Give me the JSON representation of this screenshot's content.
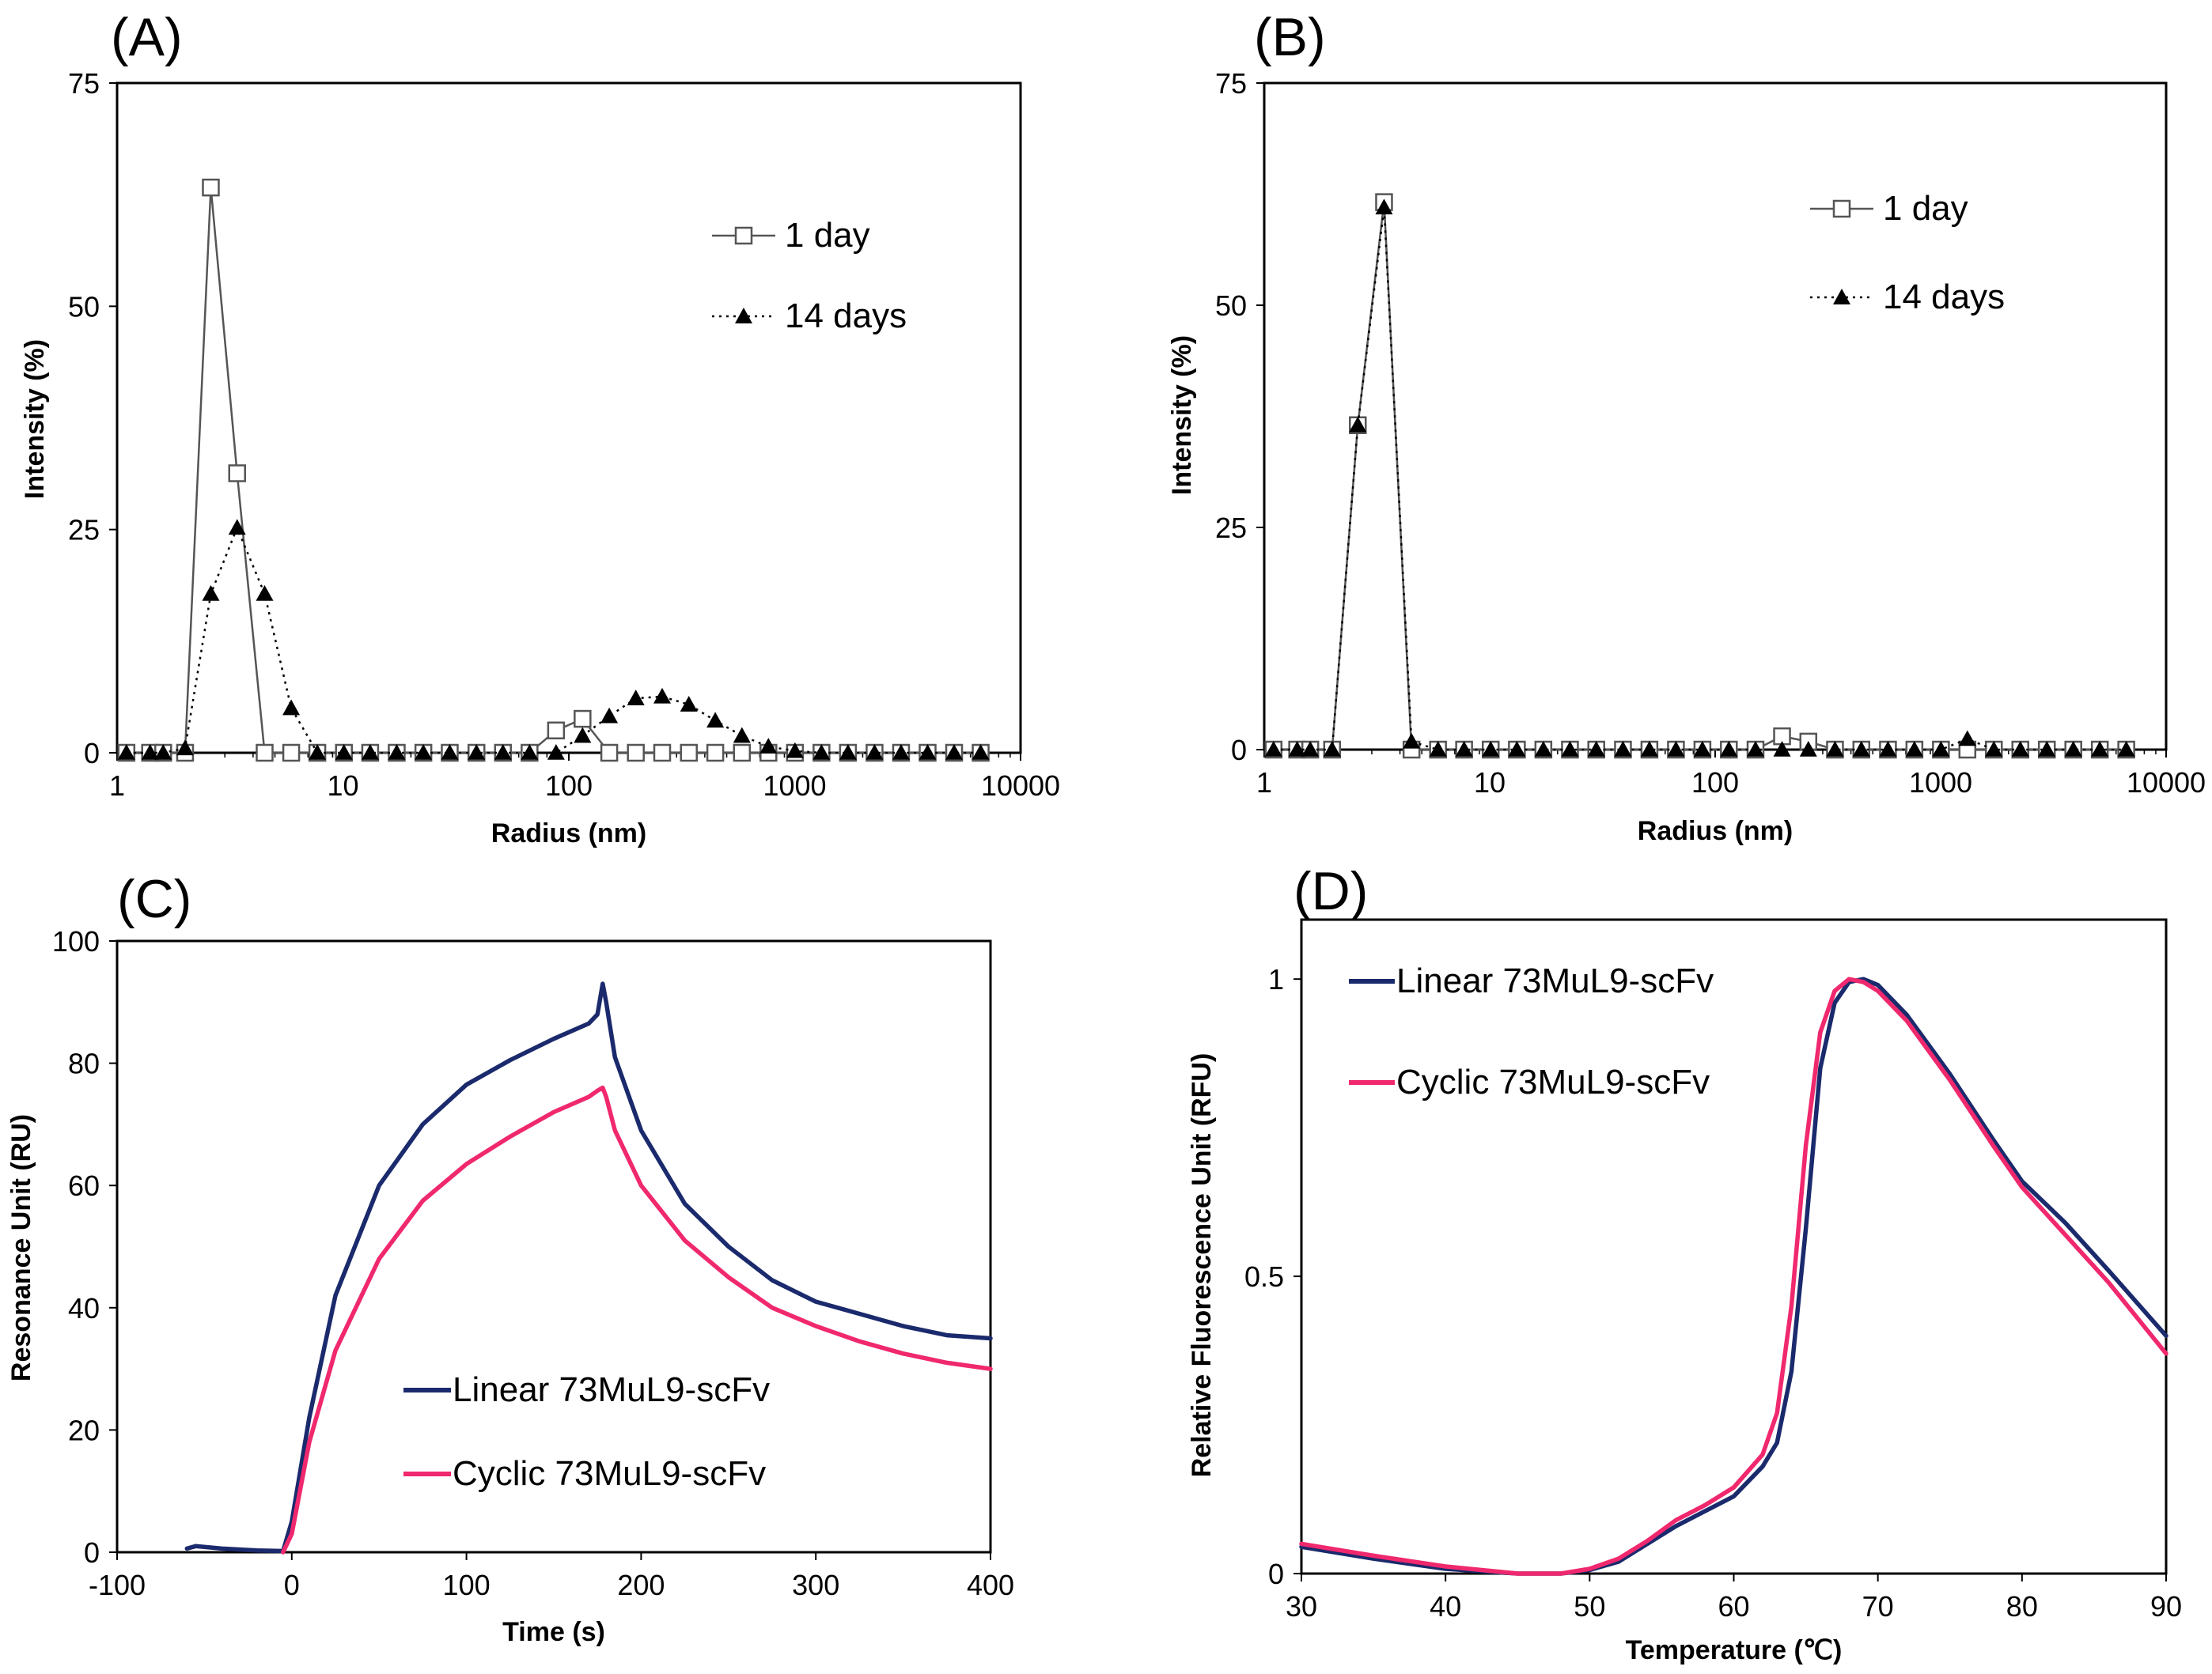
{
  "figure": {
    "background": "#ffffff"
  },
  "chart_data": [
    {
      "panel": "(A)",
      "type": "scatter",
      "xscale": "log",
      "xlabel": "Radius (nm)",
      "ylabel": "Intensity (%)",
      "xlim": [
        1,
        10000
      ],
      "ylim": [
        0,
        75
      ],
      "xticks": [
        "1",
        "10",
        "100",
        "1000",
        "10000"
      ],
      "yticks": [
        "0",
        "25",
        "50",
        "75"
      ],
      "x": [
        1.1,
        1.4,
        1.6,
        2.0,
        2.6,
        3.4,
        4.5,
        5.9,
        7.7,
        10.1,
        13.2,
        17.3,
        22.7,
        29.7,
        39.0,
        51.1,
        67.0,
        87.8,
        115,
        151,
        198,
        259,
        340,
        445,
        584,
        765,
        1003,
        1314,
        1722,
        2257,
        2958,
        3877,
        5080,
        6658
      ],
      "series": [
        {
          "name": "1 day",
          "marker": "open-square",
          "line": "solid",
          "values": [
            0,
            0,
            0,
            0,
            63.3,
            31.3,
            0,
            0,
            0,
            0,
            0,
            0,
            0,
            0,
            0,
            0,
            0,
            2.5,
            3.8,
            0,
            0,
            0,
            0,
            0,
            0,
            0,
            0,
            0,
            0,
            0,
            0,
            0,
            0,
            0
          ]
        },
        {
          "name": "14 days",
          "marker": "filled-triangle",
          "line": "dotted",
          "values": [
            0,
            0,
            0,
            0.5,
            17.8,
            25.2,
            17.8,
            5.0,
            0,
            0,
            0,
            0,
            0,
            0,
            0,
            0,
            0,
            0,
            1.9,
            4.1,
            6.1,
            6.3,
            5.4,
            3.6,
            1.9,
            0.7,
            0.2,
            0,
            0,
            0,
            0,
            0,
            0,
            0
          ]
        }
      ],
      "legend": [
        "1 day",
        "14 days"
      ],
      "legend_position": "top-right"
    },
    {
      "panel": "(B)",
      "type": "scatter",
      "xscale": "log",
      "xlabel": "Radius (nm)",
      "ylabel": "Intensity (%)",
      "xlim": [
        1,
        10000
      ],
      "ylim": [
        0,
        75
      ],
      "xticks": [
        "1",
        "10",
        "100",
        "1000",
        "10000"
      ],
      "yticks": [
        "0",
        "25",
        "50",
        "75"
      ],
      "x": [
        1.1,
        1.4,
        1.6,
        2.0,
        2.6,
        3.4,
        4.5,
        5.9,
        7.7,
        10.1,
        13.2,
        17.3,
        22.7,
        29.7,
        39.0,
        51.1,
        67.0,
        87.8,
        115,
        151,
        198,
        259,
        340,
        445,
        584,
        765,
        1003,
        1314,
        1722,
        2257,
        2958,
        3877,
        5080,
        6658
      ],
      "series": [
        {
          "name": "1 day",
          "marker": "open-square",
          "line": "solid",
          "values": [
            0,
            0,
            0,
            0,
            36.5,
            61.6,
            0,
            0,
            0,
            0,
            0,
            0,
            0,
            0,
            0,
            0,
            0,
            0,
            0,
            0,
            1.5,
            0.9,
            0,
            0,
            0,
            0,
            0,
            0,
            0,
            0,
            0,
            0,
            0,
            0
          ]
        },
        {
          "name": "14 days",
          "marker": "filled-triangle",
          "line": "dotted",
          "values": [
            0,
            0,
            0,
            0,
            36.5,
            61.0,
            0.9,
            0,
            0,
            0,
            0,
            0,
            0,
            0,
            0,
            0,
            0,
            0,
            0,
            0,
            0,
            0,
            0,
            0,
            0,
            0,
            0,
            1.2,
            0,
            0,
            0,
            0,
            0,
            0
          ]
        }
      ],
      "legend": [
        "1 day",
        "14 days"
      ],
      "legend_position": "top-right"
    },
    {
      "panel": "(C)",
      "type": "line",
      "xlabel": "Time (s)",
      "ylabel": "Resonance Unit (RU)",
      "xlim": [
        -100,
        400
      ],
      "ylim": [
        0,
        100
      ],
      "xticks": [
        "-100",
        "0",
        "100",
        "200",
        "300",
        "400"
      ],
      "yticks": [
        "0",
        "20",
        "40",
        "60",
        "80",
        "100"
      ],
      "series": [
        {
          "name": "Linear 73MuL9-scFv",
          "color": "#1a2a6c",
          "x": [
            -60,
            -55,
            -40,
            -20,
            -5,
            0,
            10,
            25,
            50,
            75,
            100,
            125,
            150,
            170,
            175,
            178,
            180,
            185,
            200,
            225,
            250,
            275,
            300,
            325,
            350,
            375,
            400
          ],
          "y": [
            0.6,
            1.0,
            0.6,
            0.3,
            0.2,
            5,
            22,
            42,
            60,
            70,
            76.5,
            80.5,
            84,
            86.5,
            88,
            93,
            90,
            81,
            69,
            57,
            50,
            44.5,
            41,
            39,
            37,
            35.5,
            35
          ]
        },
        {
          "name": "Cyclic 73MuL9-scFv",
          "color": "#f0286e",
          "x": [
            -5,
            0,
            10,
            25,
            50,
            75,
            100,
            125,
            150,
            170,
            175,
            178,
            180,
            185,
            200,
            225,
            250,
            275,
            300,
            325,
            350,
            375,
            400
          ],
          "y": [
            0,
            3,
            18,
            33,
            48,
            57.5,
            63.5,
            68,
            72,
            74.5,
            75.5,
            76,
            74.5,
            69,
            60,
            51,
            45,
            40,
            37,
            34.5,
            32.5,
            31,
            30
          ]
        }
      ],
      "legend": [
        "Linear 73MuL9-scFv",
        "Cyclic 73MuL9-scFv"
      ],
      "legend_position": "bottom-center"
    },
    {
      "panel": "(D)",
      "type": "line",
      "xlabel": "Temperature (℃)",
      "ylabel": "Relative Fluorescence Unit (RFU)",
      "xlim": [
        30,
        90
      ],
      "ylim": [
        0,
        1.1
      ],
      "xticks": [
        "30",
        "40",
        "50",
        "60",
        "70",
        "80",
        "90"
      ],
      "yticks": [
        "0",
        "0.5",
        "1"
      ],
      "series": [
        {
          "name": "Linear 73MuL9-scFv",
          "color": "#1a2a6c",
          "x": [
            30,
            35,
            40,
            45,
            48,
            50,
            52,
            54,
            56,
            58,
            60,
            62,
            63,
            64,
            65,
            66,
            67,
            68,
            69,
            70,
            72,
            75,
            78,
            80,
            83,
            86,
            90
          ],
          "y": [
            0.045,
            0.025,
            0.008,
            0.0,
            0.0,
            0.006,
            0.02,
            0.05,
            0.08,
            0.105,
            0.13,
            0.18,
            0.22,
            0.34,
            0.58,
            0.85,
            0.96,
            0.995,
            1.0,
            0.99,
            0.94,
            0.84,
            0.73,
            0.66,
            0.59,
            0.51,
            0.4
          ]
        },
        {
          "name": "Cyclic 73MuL9-scFv",
          "color": "#f0286e",
          "x": [
            30,
            35,
            40,
            45,
            48,
            50,
            52,
            54,
            56,
            58,
            60,
            62,
            63,
            64,
            65,
            66,
            67,
            68,
            69,
            70,
            72,
            75,
            78,
            80,
            83,
            86,
            90
          ],
          "y": [
            0.05,
            0.03,
            0.012,
            0.0,
            0.0,
            0.008,
            0.025,
            0.055,
            0.09,
            0.115,
            0.145,
            0.2,
            0.27,
            0.45,
            0.72,
            0.91,
            0.98,
            1.0,
            0.995,
            0.98,
            0.93,
            0.83,
            0.72,
            0.65,
            0.57,
            0.49,
            0.37
          ]
        }
      ],
      "legend": [
        "Linear 73MuL9-scFv",
        "Cyclic 73MuL9-scFv"
      ],
      "legend_position": "top-left"
    }
  ]
}
